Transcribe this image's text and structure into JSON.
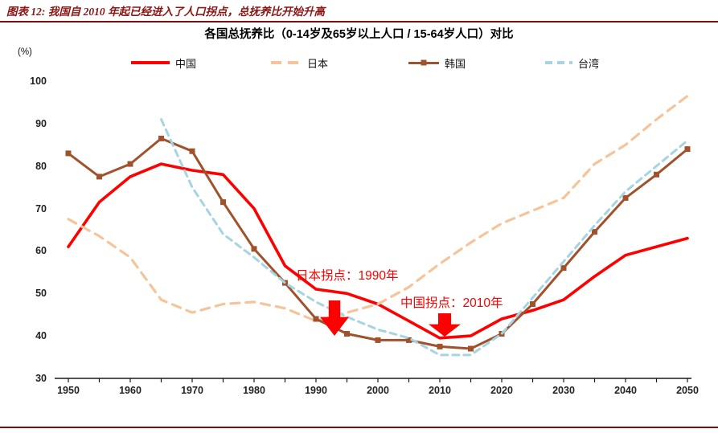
{
  "page": {
    "header_title": "图表 12: 我国自 2010 年起已经进入了人口拐点，总抚养比开始升高"
  },
  "chart": {
    "title": "各国总抚养比（0-14岁及65岁以上人口 / 15-64岁人口）对比",
    "y_unit_label": "(%)",
    "legend": [
      {
        "label": "中国"
      },
      {
        "label": "日本"
      },
      {
        "label": "韩国"
      },
      {
        "label": "台湾"
      }
    ],
    "annotations": [
      {
        "text": "日本拐点：1990年",
        "color": "#FF0000",
        "arrow_icon": "red-down-arrow"
      },
      {
        "text": "中国拐点：2010年",
        "color": "#FF0000",
        "arrow_icon": "red-down-arrow"
      }
    ],
    "rule_color": "#7A1010",
    "header_color": "#8B1515"
  },
  "chart_data": {
    "type": "line",
    "title": "各国总抚养比（0-14岁及65岁以上人口 / 15-64岁人口）对比",
    "xlabel": "",
    "ylabel": "(%)",
    "ylim": [
      30,
      100
    ],
    "xlim": [
      1950,
      2050
    ],
    "grid": false,
    "legend_position": "top",
    "x": [
      1950,
      1955,
      1960,
      1965,
      1970,
      1975,
      1980,
      1985,
      1990,
      1995,
      2000,
      2005,
      2010,
      2015,
      2020,
      2025,
      2030,
      2035,
      2040,
      2045,
      2050
    ],
    "x_ticks": [
      1950,
      1960,
      1970,
      1980,
      1990,
      2000,
      2010,
      2020,
      2030,
      2040,
      2050
    ],
    "y_ticks": [
      30,
      40,
      50,
      60,
      70,
      80,
      90,
      100
    ],
    "series": [
      {
        "id": "china",
        "name": "中国",
        "color": "#FF0000",
        "width": 3.6,
        "dash": null,
        "marker": null,
        "values": [
          61,
          71.5,
          77.5,
          80.5,
          79,
          78,
          70,
          56.5,
          51,
          50,
          47.5,
          43.5,
          39.5,
          40,
          44,
          46,
          48.5,
          54,
          59,
          61,
          63
        ]
      },
      {
        "id": "japan",
        "name": "日本",
        "color": "#F6C49B",
        "width": 3.2,
        "dash": "11,8",
        "marker": null,
        "values": [
          67.5,
          63.5,
          58.5,
          48.5,
          45.5,
          47.5,
          48,
          46.5,
          43.5,
          45.5,
          47.5,
          51.5,
          57,
          62,
          66.5,
          69.5,
          72.5,
          80.5,
          85,
          91,
          96.5
        ]
      },
      {
        "id": "korea",
        "name": "韩国",
        "color": "#A0522D",
        "width": 3,
        "dash": null,
        "marker": "square",
        "values": [
          83,
          77.5,
          80.5,
          86.5,
          83.5,
          71.5,
          60.5,
          52.5,
          44,
          40.5,
          39,
          39,
          37.5,
          37,
          40.5,
          47.5,
          56,
          64.5,
          72.5,
          78,
          84
        ]
      },
      {
        "id": "taiwan",
        "name": "台湾",
        "color": "#A6D4E2",
        "width": 3,
        "dash": "8,6",
        "marker": null,
        "values": [
          null,
          null,
          null,
          91,
          75,
          64,
          58.5,
          52.5,
          48,
          44.5,
          41.5,
          39.5,
          35.5,
          35.5,
          40.5,
          49,
          57.5,
          66,
          74,
          80,
          86
        ]
      }
    ]
  }
}
